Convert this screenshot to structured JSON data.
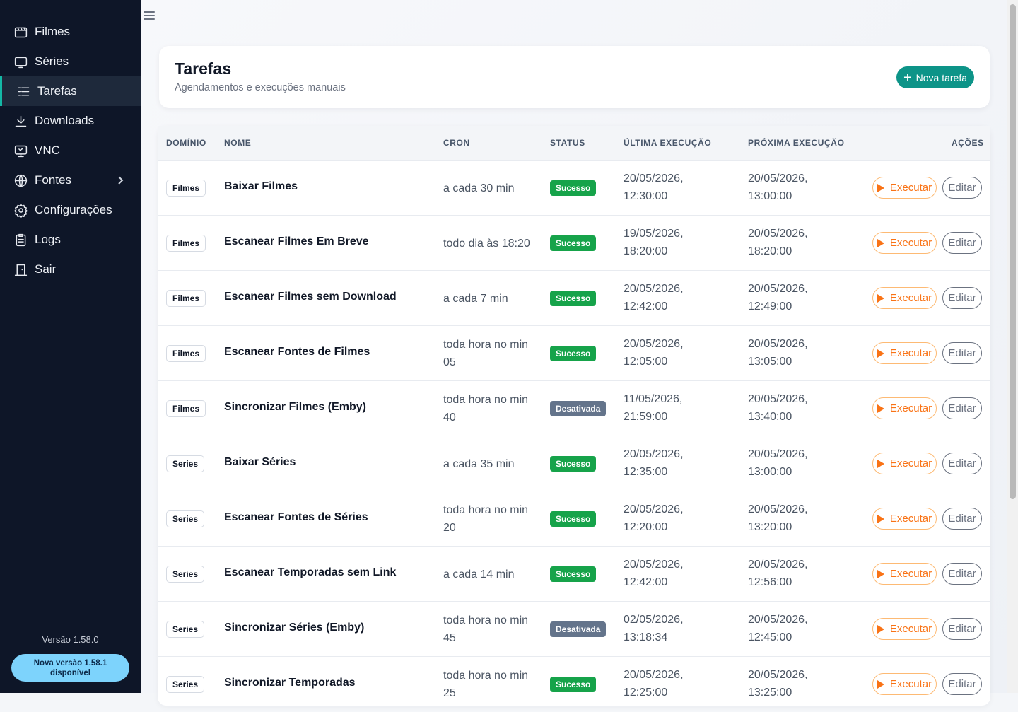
{
  "sidebar": {
    "items": [
      {
        "label": "Filmes",
        "icon": "film-icon"
      },
      {
        "label": "Séries",
        "icon": "tv-icon"
      },
      {
        "label": "Tarefas",
        "icon": "list-icon"
      },
      {
        "label": "Downloads",
        "icon": "download-icon"
      },
      {
        "label": "VNC",
        "icon": "monitor-icon"
      },
      {
        "label": "Fontes",
        "icon": "globe-icon"
      },
      {
        "label": "Configurações",
        "icon": "gear-icon"
      },
      {
        "label": "Logs",
        "icon": "clipboard-icon"
      },
      {
        "label": "Sair",
        "icon": "door-icon"
      }
    ],
    "version": "Versão 1.58.0",
    "update": {
      "line1": "Nova versão 1.58.1",
      "line2": "disponível"
    }
  },
  "header": {
    "title": "Tarefas",
    "subtitle": "Agendamentos e execuções manuais",
    "new_button": "Nova tarefa"
  },
  "table": {
    "columns": [
      "DOMÍNIO",
      "NOME",
      "CRON",
      "STATUS",
      "ÚLTIMA EXECUÇÃO",
      "PRÓXIMA EXECUÇÃO",
      "AÇÕES"
    ],
    "run_label": "Executar",
    "edit_label": "Editar",
    "rows": [
      {
        "domain": "Filmes",
        "name": "Baixar Filmes",
        "cron": "a cada 30 min",
        "status": "Sucesso",
        "last": [
          "20/05/2026,",
          "12:30:00"
        ],
        "next": [
          "20/05/2026,",
          "13:00:00"
        ]
      },
      {
        "domain": "Filmes",
        "name": "Escanear Filmes Em Breve",
        "cron": "todo dia às 18:20",
        "status": "Sucesso",
        "last": [
          "19/05/2026,",
          "18:20:00"
        ],
        "next": [
          "20/05/2026,",
          "18:20:00"
        ]
      },
      {
        "domain": "Filmes",
        "name": "Escanear Filmes sem Download",
        "cron": "a cada 7 min",
        "status": "Sucesso",
        "last": [
          "20/05/2026,",
          "12:42:00"
        ],
        "next": [
          "20/05/2026,",
          "12:49:00"
        ]
      },
      {
        "domain": "Filmes",
        "name": "Escanear Fontes de Filmes",
        "cron": "toda hora no min 05",
        "status": "Sucesso",
        "last": [
          "20/05/2026,",
          "12:05:00"
        ],
        "next": [
          "20/05/2026,",
          "13:05:00"
        ]
      },
      {
        "domain": "Filmes",
        "name": "Sincronizar Filmes (Emby)",
        "cron": "toda hora no min 40",
        "status": "Desativada",
        "last": [
          "11/05/2026,",
          "21:59:00"
        ],
        "next": [
          "20/05/2026,",
          "13:40:00"
        ]
      },
      {
        "domain": "Series",
        "name": "Baixar Séries",
        "cron": "a cada 35 min",
        "status": "Sucesso",
        "last": [
          "20/05/2026,",
          "12:35:00"
        ],
        "next": [
          "20/05/2026,",
          "13:00:00"
        ]
      },
      {
        "domain": "Series",
        "name": "Escanear Fontes de Séries",
        "cron": "toda hora no min 20",
        "status": "Sucesso",
        "last": [
          "20/05/2026,",
          "12:20:00"
        ],
        "next": [
          "20/05/2026,",
          "13:20:00"
        ]
      },
      {
        "domain": "Series",
        "name": "Escanear Temporadas sem Link",
        "cron": "a cada 14 min",
        "status": "Sucesso",
        "last": [
          "20/05/2026,",
          "12:42:00"
        ],
        "next": [
          "20/05/2026,",
          "12:56:00"
        ]
      },
      {
        "domain": "Series",
        "name": "Sincronizar Séries (Emby)",
        "cron": "toda hora no min 45",
        "status": "Desativada",
        "last": [
          "02/05/2026,",
          "13:18:34"
        ],
        "next": [
          "20/05/2026,",
          "12:45:00"
        ]
      },
      {
        "domain": "Series",
        "name": "Sincronizar Temporadas",
        "cron": "toda hora no min 25",
        "status": "Sucesso",
        "last": [
          "20/05/2026,",
          "12:25:00"
        ],
        "next": [
          "20/05/2026,",
          "13:25:00"
        ]
      }
    ]
  },
  "colors": {
    "sidebar_bg": "#0e1628",
    "accent": "#0d9488",
    "success": "#16a34a",
    "disabled": "#64748b",
    "run": "#f97316",
    "update_pill": "#7dd3fc"
  }
}
